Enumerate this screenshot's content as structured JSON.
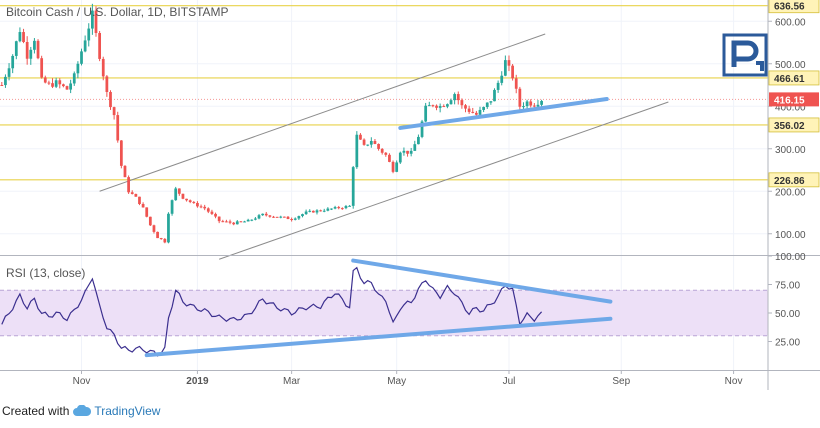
{
  "header": {
    "title": "Bitcoin Cash / U.S. Dollar, 1D, BITSTAMP"
  },
  "rsi_panel": {
    "title": "RSI (13, close)"
  },
  "footer": {
    "created_with": "Created with",
    "brand": "TradingView"
  },
  "logo": {
    "name": "roboforex-logo"
  },
  "colors": {
    "up": "#26a69a",
    "down": "#ef5350",
    "hline": "#e8d24a",
    "channel": "#8c8c8c",
    "trend": "#6fa8e8",
    "rsi_line": "#3b2f8f",
    "rsi_band": "#ede0f7",
    "current_price": "#ef5350",
    "label_bg": "#fff3b8"
  },
  "chart_data": [
    {
      "type": "candlestick",
      "title": "Bitcoin Cash / U.S. Dollar, 1D, BITSTAMP",
      "ylim": [
        50,
        650
      ],
      "y_ticks": [
        100,
        200,
        300,
        400,
        500,
        600
      ],
      "y_tick_labels": [
        "100.00",
        "200.00",
        "300.00",
        "400.00",
        "500.00",
        "600.00"
      ],
      "x_ticks": [
        {
          "label": "Nov",
          "index": 22
        },
        {
          "label": "2019",
          "index": 54
        },
        {
          "label": "Mar",
          "index": 80
        },
        {
          "label": "May",
          "index": 109
        },
        {
          "label": "Jul",
          "index": 140
        },
        {
          "label": "Sep",
          "index": 171
        },
        {
          "label": "Nov",
          "index": 202
        }
      ],
      "total_slots": 212,
      "levels": [
        {
          "value": 636.56,
          "label": "636.56"
        },
        {
          "value": 466.61,
          "label": "466.61"
        },
        {
          "value": 356.02,
          "label": "356.02"
        },
        {
          "value": 226.86,
          "label": "226.86"
        }
      ],
      "current_price": {
        "value": 416.15,
        "label": "416.15"
      },
      "channel_lines": [
        {
          "start": {
            "index": 27,
            "value": 200
          },
          "end": {
            "index": 150,
            "value": 570
          }
        },
        {
          "start": {
            "index": 60,
            "value": 40
          },
          "end": {
            "index": 184,
            "value": 410
          }
        }
      ],
      "support_line": {
        "start": {
          "index": 110,
          "value": 349
        },
        "end": {
          "index": 167,
          "value": 417
        }
      },
      "close_path": [
        {
          "index": 0,
          "value": 450
        },
        {
          "index": 3,
          "value": 520
        },
        {
          "index": 5,
          "value": 580
        },
        {
          "index": 7,
          "value": 520
        },
        {
          "index": 9,
          "value": 560
        },
        {
          "index": 11,
          "value": 460
        },
        {
          "index": 13,
          "value": 450
        },
        {
          "index": 15,
          "value": 455
        },
        {
          "index": 18,
          "value": 440
        },
        {
          "index": 20,
          "value": 470
        },
        {
          "index": 23,
          "value": 560
        },
        {
          "index": 25,
          "value": 615
        },
        {
          "index": 27,
          "value": 520
        },
        {
          "index": 29,
          "value": 430
        },
        {
          "index": 31,
          "value": 380
        },
        {
          "index": 33,
          "value": 260
        },
        {
          "index": 35,
          "value": 200
        },
        {
          "index": 37,
          "value": 185
        },
        {
          "index": 39,
          "value": 160
        },
        {
          "index": 41,
          "value": 120
        },
        {
          "index": 43,
          "value": 92
        },
        {
          "index": 45,
          "value": 82
        },
        {
          "index": 46,
          "value": 150
        },
        {
          "index": 48,
          "value": 205
        },
        {
          "index": 50,
          "value": 185
        },
        {
          "index": 53,
          "value": 170
        },
        {
          "index": 56,
          "value": 160
        },
        {
          "index": 60,
          "value": 130
        },
        {
          "index": 64,
          "value": 125
        },
        {
          "index": 68,
          "value": 130
        },
        {
          "index": 72,
          "value": 145
        },
        {
          "index": 76,
          "value": 140
        },
        {
          "index": 80,
          "value": 135
        },
        {
          "index": 84,
          "value": 150
        },
        {
          "index": 88,
          "value": 155
        },
        {
          "index": 92,
          "value": 160
        },
        {
          "index": 96,
          "value": 165
        },
        {
          "index": 97,
          "value": 260
        },
        {
          "index": 98,
          "value": 330
        },
        {
          "index": 100,
          "value": 305
        },
        {
          "index": 102,
          "value": 320
        },
        {
          "index": 104,
          "value": 300
        },
        {
          "index": 106,
          "value": 285
        },
        {
          "index": 108,
          "value": 250
        },
        {
          "index": 110,
          "value": 295
        },
        {
          "index": 113,
          "value": 290
        },
        {
          "index": 115,
          "value": 330
        },
        {
          "index": 117,
          "value": 395
        },
        {
          "index": 119,
          "value": 405
        },
        {
          "index": 121,
          "value": 400
        },
        {
          "index": 123,
          "value": 410
        },
        {
          "index": 125,
          "value": 430
        },
        {
          "index": 127,
          "value": 400
        },
        {
          "index": 129,
          "value": 390
        },
        {
          "index": 131,
          "value": 380
        },
        {
          "index": 133,
          "value": 395
        },
        {
          "index": 135,
          "value": 415
        },
        {
          "index": 137,
          "value": 455
        },
        {
          "index": 139,
          "value": 505
        },
        {
          "index": 141,
          "value": 470
        },
        {
          "index": 143,
          "value": 400
        },
        {
          "index": 145,
          "value": 410
        },
        {
          "index": 147,
          "value": 405
        },
        {
          "index": 149,
          "value": 416
        }
      ]
    },
    {
      "type": "line",
      "title": "RSI (13, close)",
      "ylim": [
        0,
        100
      ],
      "y_ticks": [
        25,
        50,
        75,
        100
      ],
      "y_tick_labels": [
        "25.00",
        "50.00",
        "75.00",
        "100.00"
      ],
      "band": [
        30,
        70
      ],
      "trend_lines": [
        {
          "start": {
            "index": 40,
            "value": 13
          },
          "end": {
            "index": 168,
            "value": 45
          }
        },
        {
          "start": {
            "index": 97,
            "value": 96
          },
          "end": {
            "index": 168,
            "value": 60
          }
        }
      ],
      "points": [
        {
          "index": 0,
          "value": 40
        },
        {
          "index": 3,
          "value": 55
        },
        {
          "index": 5,
          "value": 65
        },
        {
          "index": 7,
          "value": 55
        },
        {
          "index": 9,
          "value": 62
        },
        {
          "index": 11,
          "value": 50
        },
        {
          "index": 13,
          "value": 47
        },
        {
          "index": 15,
          "value": 50
        },
        {
          "index": 18,
          "value": 45
        },
        {
          "index": 20,
          "value": 52
        },
        {
          "index": 23,
          "value": 67
        },
        {
          "index": 25,
          "value": 82
        },
        {
          "index": 27,
          "value": 55
        },
        {
          "index": 29,
          "value": 38
        },
        {
          "index": 31,
          "value": 30
        },
        {
          "index": 33,
          "value": 20
        },
        {
          "index": 35,
          "value": 17
        },
        {
          "index": 37,
          "value": 19
        },
        {
          "index": 39,
          "value": 18
        },
        {
          "index": 41,
          "value": 16
        },
        {
          "index": 43,
          "value": 14
        },
        {
          "index": 45,
          "value": 18
        },
        {
          "index": 46,
          "value": 45
        },
        {
          "index": 48,
          "value": 70
        },
        {
          "index": 50,
          "value": 60
        },
        {
          "index": 53,
          "value": 55
        },
        {
          "index": 56,
          "value": 52
        },
        {
          "index": 60,
          "value": 46
        },
        {
          "index": 64,
          "value": 44
        },
        {
          "index": 68,
          "value": 48
        },
        {
          "index": 72,
          "value": 62
        },
        {
          "index": 76,
          "value": 55
        },
        {
          "index": 80,
          "value": 50
        },
        {
          "index": 84,
          "value": 55
        },
        {
          "index": 88,
          "value": 56
        },
        {
          "index": 92,
          "value": 68
        },
        {
          "index": 96,
          "value": 55
        },
        {
          "index": 97,
          "value": 85
        },
        {
          "index": 98,
          "value": 90
        },
        {
          "index": 100,
          "value": 75
        },
        {
          "index": 102,
          "value": 78
        },
        {
          "index": 104,
          "value": 65
        },
        {
          "index": 106,
          "value": 62
        },
        {
          "index": 108,
          "value": 40
        },
        {
          "index": 110,
          "value": 55
        },
        {
          "index": 113,
          "value": 60
        },
        {
          "index": 115,
          "value": 70
        },
        {
          "index": 117,
          "value": 80
        },
        {
          "index": 119,
          "value": 70
        },
        {
          "index": 121,
          "value": 65
        },
        {
          "index": 123,
          "value": 72
        },
        {
          "index": 125,
          "value": 68
        },
        {
          "index": 127,
          "value": 58
        },
        {
          "index": 129,
          "value": 50
        },
        {
          "index": 131,
          "value": 54
        },
        {
          "index": 133,
          "value": 52
        },
        {
          "index": 135,
          "value": 58
        },
        {
          "index": 137,
          "value": 64
        },
        {
          "index": 139,
          "value": 75
        },
        {
          "index": 141,
          "value": 70
        },
        {
          "index": 143,
          "value": 42
        },
        {
          "index": 145,
          "value": 48
        },
        {
          "index": 147,
          "value": 45
        },
        {
          "index": 149,
          "value": 49
        }
      ]
    }
  ]
}
